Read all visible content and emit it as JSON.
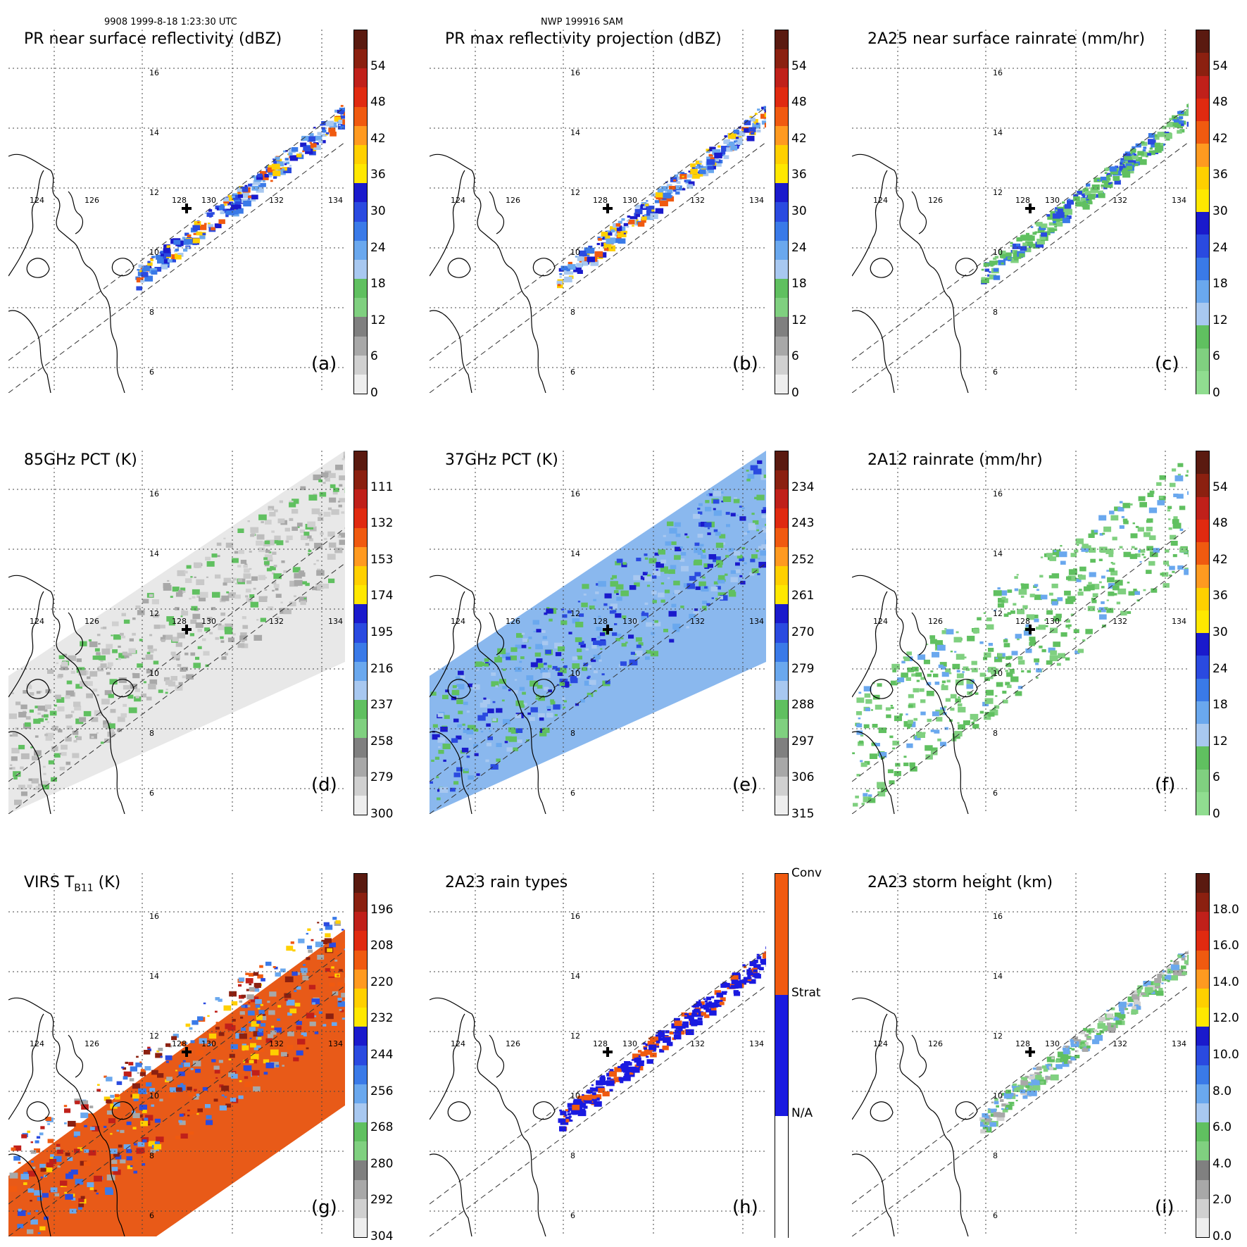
{
  "header": {
    "left": "9908 1999-8-18 1:23:30 UTC",
    "center": "NWP 199916 SAM"
  },
  "lat_labels": [
    "16",
    "14",
    "12",
    "10",
    "8",
    "6"
  ],
  "lon_labels": [
    "124",
    "126",
    "128",
    "130",
    "132",
    "134"
  ],
  "panels": [
    {
      "id": "a",
      "title": "PR near surface reflectivity (dBZ)",
      "letter": "(a)",
      "kind": "swath_narrow",
      "palette": "refl",
      "colorbar": {
        "ticks": [
          "54",
          "48",
          "42",
          "36",
          "30",
          "24",
          "18",
          "12",
          "6",
          "0"
        ],
        "colors": [
          "#5a1a10",
          "#8b2010",
          "#c0201a",
          "#e02a10",
          "#f05a10",
          "#ff9a20",
          "#ffd000",
          "#ffe800",
          "#1a1acc",
          "#2a4ae0",
          "#3a7ae8",
          "#6aa8ee",
          "#a8c8f0",
          "#60c060",
          "#80d080",
          "#808080",
          "#a8a8a8",
          "#d0d0d0",
          "#eeeeee"
        ]
      }
    },
    {
      "id": "b",
      "title": "PR max reflectivity projection (dBZ)",
      "letter": "(b)",
      "kind": "swath_narrow",
      "palette": "refl",
      "colorbar": {
        "ticks": [
          "54",
          "48",
          "42",
          "36",
          "30",
          "24",
          "18",
          "12",
          "6",
          "0"
        ],
        "colors": [
          "#5a1a10",
          "#8b2010",
          "#c0201a",
          "#e02a10",
          "#f05a10",
          "#ff9a20",
          "#ffd000",
          "#ffe800",
          "#1a1acc",
          "#2a4ae0",
          "#3a7ae8",
          "#6aa8ee",
          "#a8c8f0",
          "#60c060",
          "#80d080",
          "#808080",
          "#a8a8a8",
          "#d0d0d0",
          "#eeeeee"
        ]
      }
    },
    {
      "id": "c",
      "title": "2A25 near surface rainrate (mm/hr)",
      "letter": "(c)",
      "kind": "swath_narrow",
      "palette": "rain",
      "colorbar": {
        "ticks": [
          "54",
          "48",
          "42",
          "36",
          "30",
          "24",
          "18",
          "12",
          "6",
          "0"
        ],
        "colors": [
          "#5a1a10",
          "#8b2010",
          "#c0201a",
          "#e02a10",
          "#f05a10",
          "#ff9a20",
          "#ffd000",
          "#ffe800",
          "#1a1acc",
          "#2a4ae0",
          "#3a7ae8",
          "#6aa8ee",
          "#a8c8f0",
          "#60c060",
          "#80d080",
          "#90dd90"
        ]
      }
    },
    {
      "id": "d",
      "title": "85GHz PCT (K)",
      "letter": "(d)",
      "kind": "swath_wide",
      "palette": "pct85",
      "colorbar": {
        "ticks": [
          "111",
          "132",
          "153",
          "174",
          "195",
          "216",
          "237",
          "258",
          "279",
          "300"
        ],
        "colors": [
          "#5a1a10",
          "#8b2010",
          "#c0201a",
          "#e02a10",
          "#f05a10",
          "#ff9a20",
          "#ffd000",
          "#ffe800",
          "#1a1acc",
          "#2a4ae0",
          "#3a7ae8",
          "#6aa8ee",
          "#a8c8f0",
          "#60c060",
          "#80d080",
          "#808080",
          "#a8a8a8",
          "#d0d0d0",
          "#eeeeee"
        ]
      }
    },
    {
      "id": "e",
      "title": "37GHz PCT (K)",
      "letter": "(e)",
      "kind": "swath_wide",
      "palette": "pct37",
      "colorbar": {
        "ticks": [
          "234",
          "243",
          "252",
          "261",
          "270",
          "279",
          "288",
          "297",
          "306",
          "315"
        ],
        "colors": [
          "#5a1a10",
          "#8b2010",
          "#c0201a",
          "#e02a10",
          "#f05a10",
          "#ff9a20",
          "#ffd000",
          "#ffe800",
          "#1a1acc",
          "#2a4ae0",
          "#3a7ae8",
          "#6aa8ee",
          "#a8c8f0",
          "#60c060",
          "#80d080",
          "#808080",
          "#a8a8a8",
          "#d0d0d0",
          "#eeeeee"
        ]
      }
    },
    {
      "id": "f",
      "title": "2A12 rainrate (mm/hr)",
      "letter": "(f)",
      "kind": "swath_wide",
      "palette": "rain12",
      "colorbar": {
        "ticks": [
          "54",
          "48",
          "42",
          "36",
          "30",
          "24",
          "18",
          "12",
          "6",
          "0"
        ],
        "colors": [
          "#5a1a10",
          "#8b2010",
          "#c0201a",
          "#e02a10",
          "#f05a10",
          "#ff9a20",
          "#ffd000",
          "#ffe800",
          "#1a1acc",
          "#2a4ae0",
          "#3a7ae8",
          "#6aa8ee",
          "#a8c8f0",
          "#60c060",
          "#80d080",
          "#90dd90"
        ]
      }
    },
    {
      "id": "g",
      "title": "VIRS T",
      "title_sub": "B11",
      "title_tail": " (K)",
      "letter": "(g)",
      "kind": "swath_wide",
      "palette": "virs",
      "colorbar": {
        "ticks": [
          "196",
          "208",
          "220",
          "232",
          "244",
          "256",
          "268",
          "280",
          "292",
          "304"
        ],
        "colors": [
          "#5a1a10",
          "#8b2010",
          "#c0201a",
          "#e02a10",
          "#f05a10",
          "#ff9a20",
          "#ffd000",
          "#ffe800",
          "#1a1acc",
          "#2a4ae0",
          "#3a7ae8",
          "#6aa8ee",
          "#a8c8f0",
          "#60c060",
          "#80d080",
          "#808080",
          "#a8a8a8",
          "#d0d0d0",
          "#eeeeee"
        ]
      }
    },
    {
      "id": "h",
      "title": "2A23 rain types",
      "letter": "(h)",
      "kind": "swath_narrow",
      "palette": "types",
      "colorbar": {
        "ticks": [
          "Conv",
          "Strat",
          "N/A"
        ],
        "colors": [
          "#f05a10",
          "#1a1ae0",
          "#ffffff"
        ]
      }
    },
    {
      "id": "i",
      "title": "2A23 storm height (km)",
      "letter": "(i)",
      "kind": "swath_narrow",
      "palette": "height",
      "colorbar": {
        "ticks": [
          "18.0",
          "16.0",
          "14.0",
          "12.0",
          "10.0",
          "8.0",
          "6.0",
          "4.0",
          "2.0",
          "0.0"
        ],
        "colors": [
          "#5a1a10",
          "#8b2010",
          "#c0201a",
          "#e02a10",
          "#f05a10",
          "#ff9a20",
          "#ffd000",
          "#ffe800",
          "#1a1acc",
          "#2a4ae0",
          "#3a7ae8",
          "#6aa8ee",
          "#a8c8f0",
          "#60c060",
          "#80d080",
          "#808080",
          "#a8a8a8",
          "#d0d0d0",
          "#eeeeee"
        ]
      }
    }
  ]
}
